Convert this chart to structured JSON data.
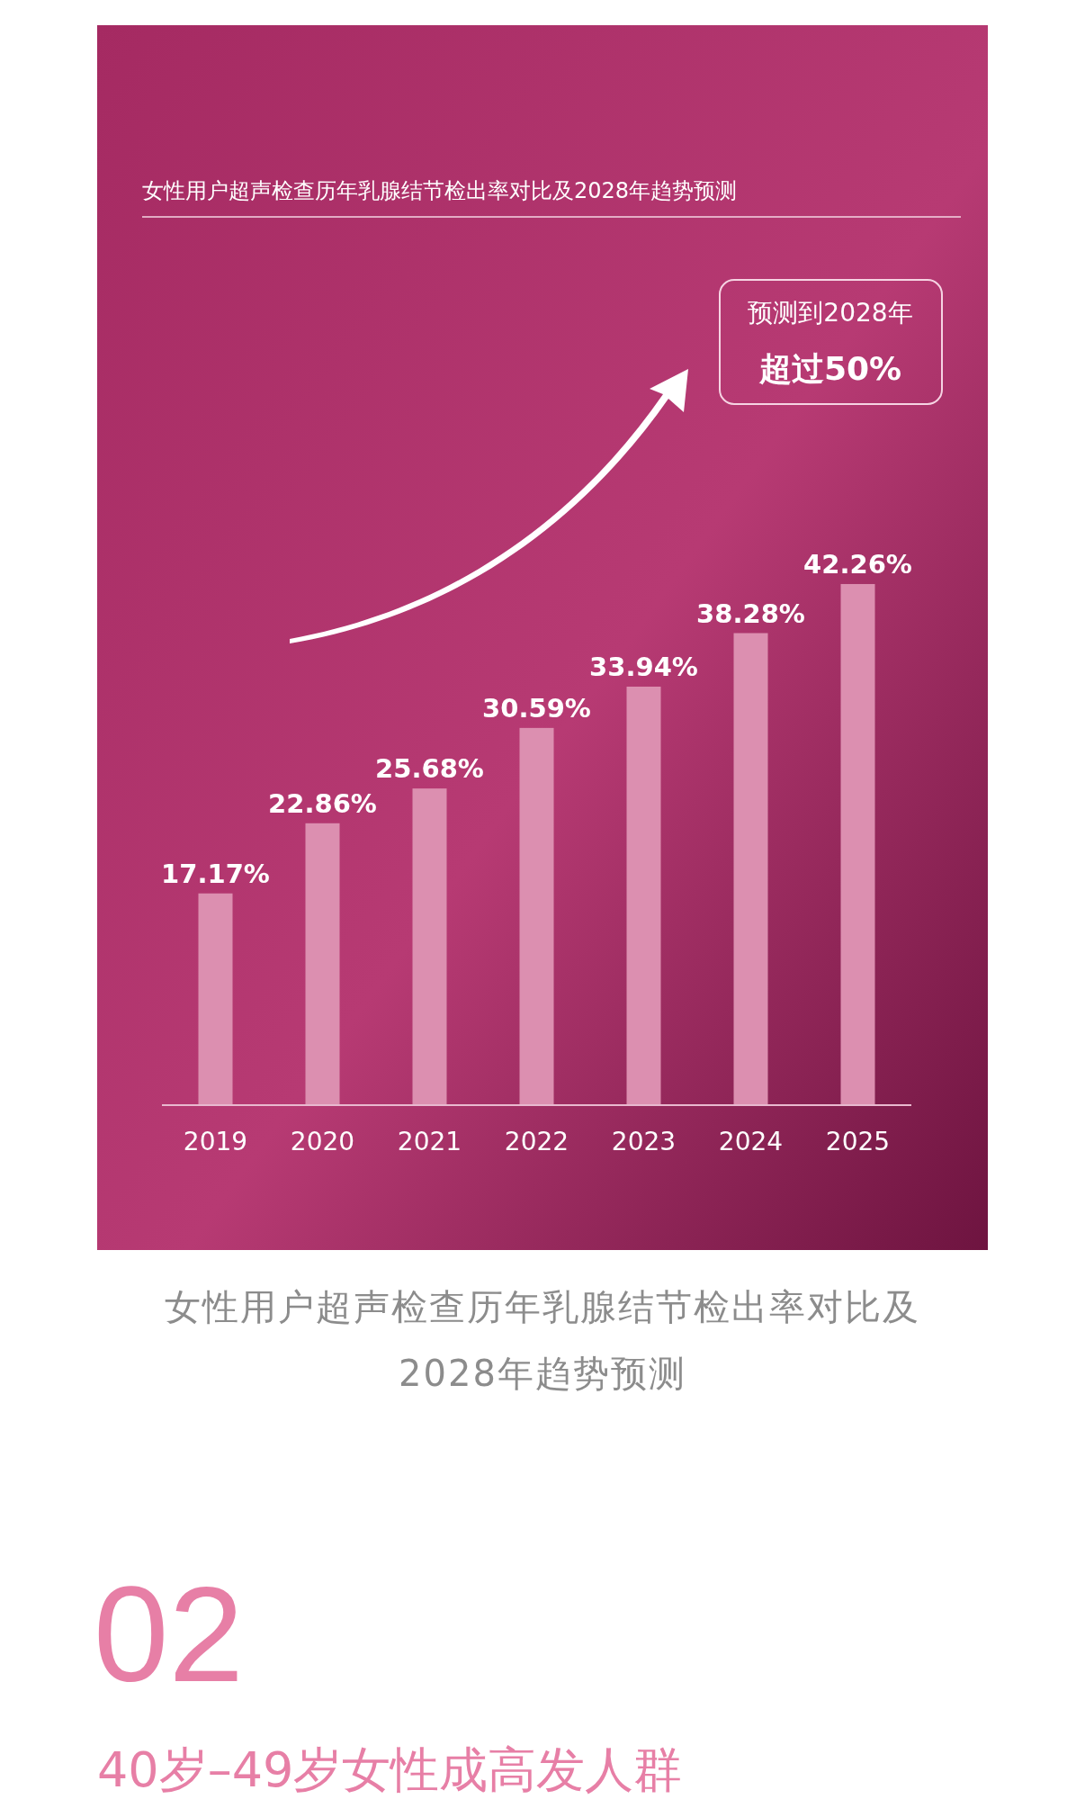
{
  "chart_data": {
    "type": "bar",
    "title": "女性用户超声检查历年乳腺结节检出率对比及2028年趋势预测",
    "categories": [
      "2019",
      "2020",
      "2021",
      "2022",
      "2023",
      "2024",
      "2025"
    ],
    "values": [
      17.17,
      22.86,
      25.68,
      30.59,
      33.94,
      38.28,
      42.26
    ],
    "value_labels": [
      "17.17%",
      "22.86%",
      "25.68%",
      "30.59%",
      "33.94%",
      "38.28%",
      "42.26%"
    ],
    "color": "#dc8fb0",
    "tick_labels": "x",
    "annotations": [
      "预测到2028年",
      "超过50%",
      "女性用户超声检查历年乳腺结节检出率对比及2028年趋势预测",
      "02",
      "40岁–49岁女性成高发人群"
    ]
  }
}
